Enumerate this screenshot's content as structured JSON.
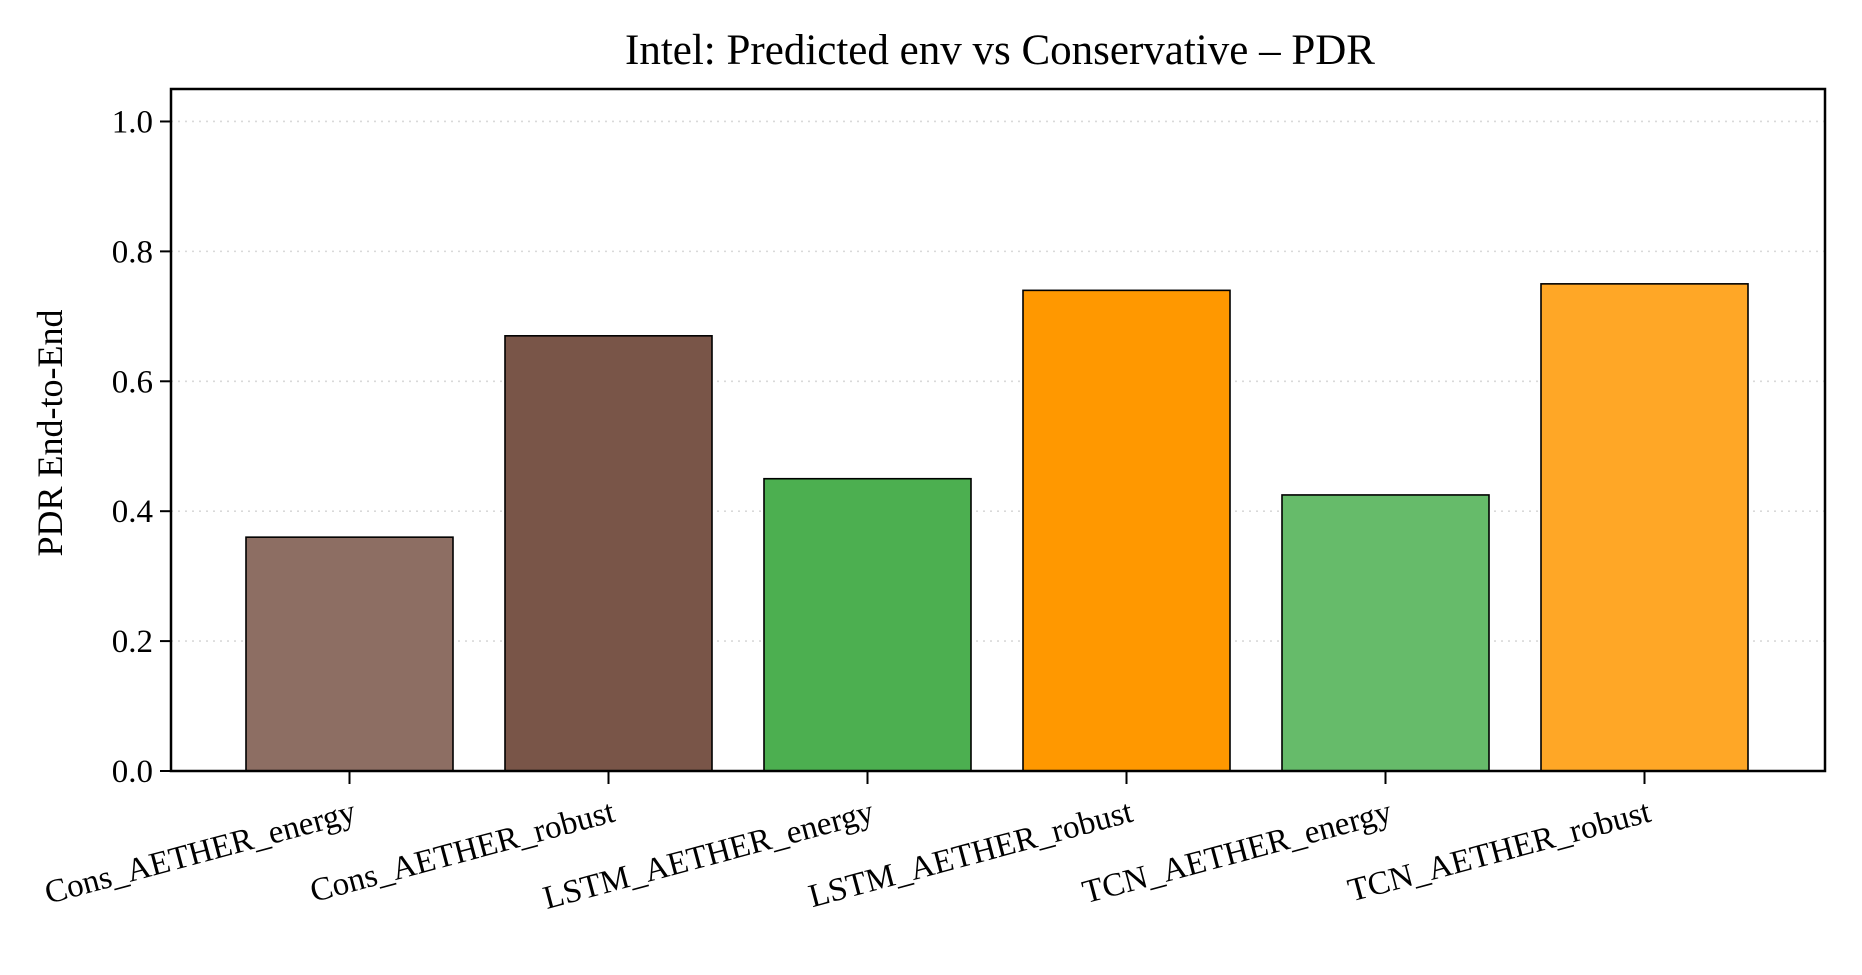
{
  "chart_data": {
    "type": "bar",
    "title": "Intel: Predicted env vs Conservative – PDR",
    "xlabel": "",
    "ylabel": "PDR End-to-End",
    "categories": [
      "Cons_AETHER_energy",
      "Cons_AETHER_robust",
      "LSTM_AETHER_energy",
      "LSTM_AETHER_robust",
      "TCN_AETHER_energy",
      "TCN_AETHER_robust"
    ],
    "values": [
      0.36,
      0.67,
      0.45,
      0.74,
      0.425,
      0.75
    ],
    "colors": [
      "#8d6e63",
      "#795548",
      "#4caf50",
      "#ff9800",
      "#66bb6a",
      "#ffa726"
    ],
    "ylim": [
      0,
      1.05
    ],
    "yticks": [
      "0.0",
      "0.2",
      "0.4",
      "0.6",
      "0.8",
      "1.0"
    ],
    "grid": true,
    "legend": "none"
  }
}
